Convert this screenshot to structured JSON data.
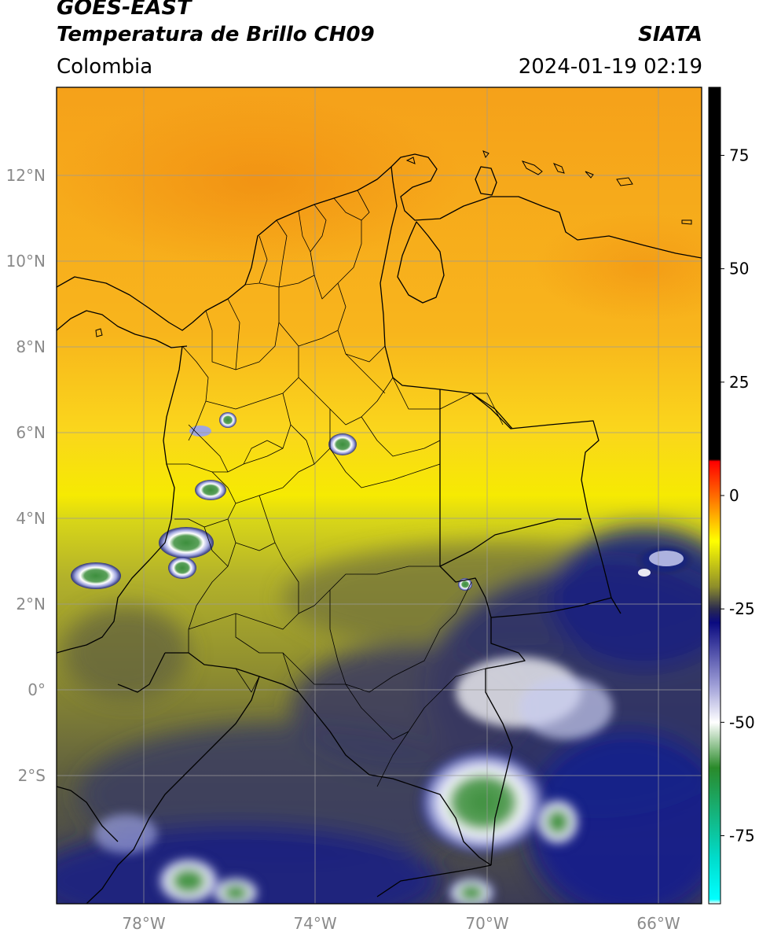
{
  "header": {
    "satellite": "GOES-EAST",
    "product": "Temperatura de Brillo CH09",
    "organization": "SIATA",
    "region": "Colombia",
    "timestamp": "2024-01-19 02:19"
  },
  "axes": {
    "lon_labels": [
      "78°W",
      "74°W",
      "70°W",
      "66°W"
    ],
    "lat_labels": [
      "12°N",
      "10°N",
      "8°N",
      "6°N",
      "4°N",
      "2°N",
      "0°",
      "2°S"
    ]
  },
  "colorbar": {
    "tick_labels": [
      "75",
      "50",
      "25",
      "0",
      "-25",
      "-50",
      "-75"
    ],
    "stops": [
      {
        "value": 90,
        "color": "#000000"
      },
      {
        "value": 8,
        "color": "#000000"
      },
      {
        "value": 7.5,
        "color": "#ff0000"
      },
      {
        "value": 0,
        "color": "#ff6a00"
      },
      {
        "value": -10,
        "color": "#ffff00"
      },
      {
        "value": -20,
        "color": "#8f8f2a"
      },
      {
        "value": -25,
        "color": "#2a2a50"
      },
      {
        "value": -28,
        "color": "#0a0a80"
      },
      {
        "value": -42,
        "color": "#a0a0d8"
      },
      {
        "value": -50,
        "color": "#ffffff"
      },
      {
        "value": -60,
        "color": "#2a8a2a"
      },
      {
        "value": -80,
        "color": "#00dccc"
      },
      {
        "value": -89,
        "color": "#00ffff"
      },
      {
        "value": -90,
        "color": "#ffffff"
      }
    ]
  },
  "colors": {
    "orange_field": "#f7a21b",
    "yellow_field": "#f5e600",
    "olive_field": "#a6a52a",
    "dark_field": "#3a3a5a",
    "navy_field": "#0f1a7a",
    "cloud_white": "#e8ecff",
    "cloud_green": "#3d8f3d",
    "boundary": "#000000",
    "grid": "#9a9a9a"
  }
}
